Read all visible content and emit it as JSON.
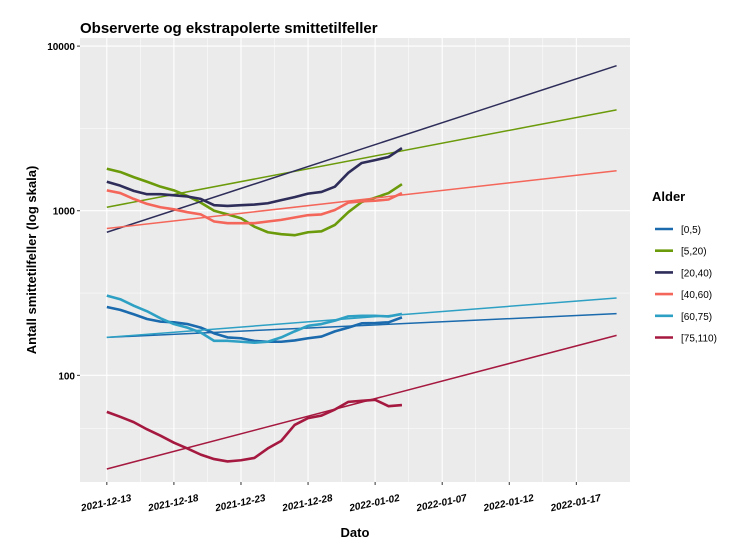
{
  "chart_data": {
    "type": "line",
    "title": "Observerte og ekstrapolerte smittetilfeller",
    "x_label": "Dato",
    "y_label": "Antall smittetilfeller (log skala)",
    "legend_title": "Alder",
    "log_y": true,
    "grid": true,
    "legend_position": "right",
    "x": [
      "2021-12-13",
      "2021-12-14",
      "2021-12-15",
      "2021-12-16",
      "2021-12-17",
      "2021-12-18",
      "2021-12-19",
      "2021-12-20",
      "2021-12-21",
      "2021-12-22",
      "2021-12-23",
      "2021-12-24",
      "2021-12-25",
      "2021-12-26",
      "2021-12-27",
      "2021-12-28",
      "2021-12-29",
      "2021-12-30",
      "2021-12-31",
      "2022-01-01",
      "2022-01-02",
      "2022-01-03",
      "2022-01-04"
    ],
    "xlim": [
      "2021-12-11",
      "2022-01-21"
    ],
    "xticks": [
      "2021-12-13",
      "2021-12-18",
      "2021-12-23",
      "2021-12-28",
      "2022-01-02",
      "2022-01-07",
      "2022-01-12",
      "2022-01-17"
    ],
    "ylim": [
      22.5,
      11200
    ],
    "yticks": [
      100,
      1000,
      10000
    ],
    "series": [
      {
        "name": "[0,5)",
        "color": "#1a6aad",
        "values": [
          260,
          250,
          235,
          220,
          212,
          210,
          205,
          195,
          180,
          170,
          168,
          162,
          160,
          160,
          163,
          168,
          172,
          185,
          195,
          207,
          208,
          210,
          225
        ],
        "trend_x": [
          "2021-12-13",
          "2022-01-20"
        ],
        "trend_values": [
          170,
          237
        ]
      },
      {
        "name": "[5,20)",
        "color": "#6b9a0a",
        "values": [
          1800,
          1720,
          1600,
          1500,
          1400,
          1330,
          1230,
          1120,
          1000,
          950,
          900,
          800,
          740,
          720,
          710,
          740,
          750,
          820,
          980,
          1130,
          1200,
          1280,
          1450
        ],
        "trend_x": [
          "2021-12-13",
          "2022-01-20"
        ],
        "trend_values": [
          1050,
          4100
        ]
      },
      {
        "name": "[20,40)",
        "color": "#2e2d5a",
        "values": [
          1500,
          1420,
          1320,
          1260,
          1260,
          1240,
          1220,
          1180,
          1080,
          1070,
          1080,
          1090,
          1110,
          1160,
          1210,
          1270,
          1300,
          1400,
          1700,
          1950,
          2030,
          2120,
          2400
        ],
        "trend_x": [
          "2021-12-13",
          "2022-01-20"
        ],
        "trend_values": [
          740,
          7600
        ]
      },
      {
        "name": "[40,60)",
        "color": "#f4665a",
        "values": [
          1330,
          1280,
          1180,
          1100,
          1050,
          1020,
          980,
          950,
          860,
          840,
          840,
          840,
          860,
          880,
          910,
          940,
          950,
          1010,
          1120,
          1140,
          1150,
          1170,
          1280
        ],
        "trend_x": [
          "2021-12-13",
          "2022-01-20"
        ],
        "trend_values": [
          780,
          1750
        ]
      },
      {
        "name": "[60,75)",
        "color": "#2da0c4",
        "values": [
          305,
          290,
          265,
          245,
          222,
          205,
          195,
          182,
          162,
          162,
          160,
          158,
          160,
          170,
          185,
          200,
          205,
          215,
          228,
          230,
          230,
          228,
          236
        ],
        "trend_x": [
          "2021-12-13",
          "2022-01-20"
        ],
        "trend_values": [
          170,
          295
        ]
      },
      {
        "name": "[75,110)",
        "color": "#a5183f",
        "values": [
          60,
          56,
          52,
          47,
          43,
          39,
          36,
          33,
          31,
          30,
          30.5,
          31.5,
          36,
          40,
          50,
          55,
          57,
          62,
          69,
          70,
          71,
          65,
          66
        ],
        "trend_x": [
          "2021-12-13",
          "2022-01-20"
        ],
        "trend_values": [
          27,
          175
        ]
      }
    ]
  }
}
